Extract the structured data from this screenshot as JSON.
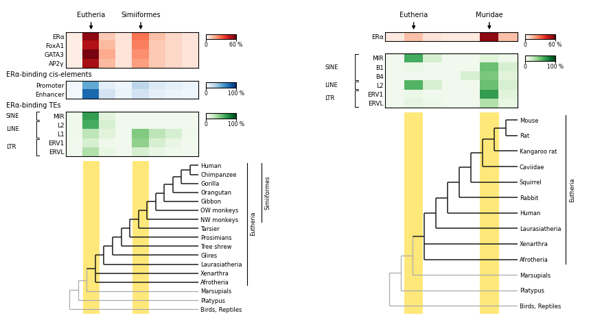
{
  "chart_data": [
    {
      "type": "heatmap",
      "annotations": [
        {
          "text": "Eutheria",
          "column": 1,
          "color": "#FFE87A"
        },
        {
          "text": "Simiiformes",
          "column": 4,
          "color": "#FFE87A"
        }
      ],
      "heatmaps": [
        {
          "categories": [
            "ERα",
            "FoxA1",
            "GATA3",
            "AP2γ"
          ],
          "color": "Reds",
          "colorbar": {
            "range": [
              0,
              60
            ],
            "ticks": [
              0,
              {
                "value": 60,
                "label": "60 %"
              }
            ]
          },
          "cells": [
            [
              3,
              55,
              12,
              6,
              28,
              14,
              9,
              6
            ],
            [
              3,
              50,
              15,
              6,
              26,
              12,
              9,
              6
            ],
            [
              3,
              58,
              18,
              6,
              23,
              12,
              9,
              6
            ],
            [
              3,
              52,
              15,
              6,
              20,
              12,
              9,
              6
            ]
          ]
        },
        {
          "title": "ERα-binding cis-elements",
          "categories": [
            "Promoter",
            "Enhancer"
          ],
          "color": "Blues",
          "colorbar": {
            "range": [
              0,
              100
            ],
            "ticks": [
              0,
              {
                "value": 100,
                "label": "100 %"
              }
            ]
          },
          "cells": [
            [
              3,
              52,
              10,
              4,
              28,
              14,
              9,
              6
            ],
            [
              3,
              78,
              18,
              6,
              18,
              9,
              6,
              4
            ]
          ]
        },
        {
          "title": "ERα-binding TEs",
          "categories": [
            "MIR",
            "L2",
            "L1",
            "ERV1",
            "ERVL"
          ],
          "row_groups": [
            "SINE",
            "LINE",
            "LINE",
            "LTR",
            "LTR"
          ],
          "color": "Greens",
          "colorbar": {
            "range": [
              0,
              100
            ],
            "ticks": [
              0,
              {
                "value": 100,
                "label": "100 %"
              }
            ]
          },
          "cells": [
            [
              6,
              68,
              14,
              4,
              4,
              4,
              4,
              4
            ],
            [
              6,
              62,
              18,
              4,
              4,
              4,
              4,
              4
            ],
            [
              6,
              28,
              14,
              4,
              46,
              28,
              18,
              6
            ],
            [
              4,
              18,
              6,
              4,
              42,
              18,
              9,
              4
            ],
            [
              4,
              32,
              10,
              4,
              18,
              9,
              6,
              4
            ]
          ]
        }
      ],
      "tree": {
        "categories": [
          "Human",
          "Chimpanzee",
          "Gorilla",
          "Orangutan",
          "Gibbon",
          "OW monkeys",
          "NW monkeys",
          "Tarsier",
          "Prosimians",
          "Tree shrew",
          "Glires",
          "Laurasiatheria",
          "Xenarthra",
          "Afrotheria",
          "Marsupials",
          "Platypus",
          "Birds, Reptiles"
        ],
        "structure": [
          [
            [
              [
                [
                  [
                    [
                      [
                        [
                          [
                            [
                              [
                                [
                                  [
                                    [
                                      "Human",
                                      "Chimpanzee"
                                    ],
                                    "Gorilla"
                                  ],
                                  "Orangutan"
                                ],
                                "Gibbon"
                              ],
                              "OW monkeys"
                            ],
                            "NW monkeys"
                          ],
                          "Tarsier"
                        ],
                        "Prosimians"
                      ],
                      "Tree shrew"
                    ],
                    "Glires"
                  ],
                  "Laurasiatheria"
                ],
                "Xenarthra",
                "Afrotheria"
              ],
              "Marsupials"
            ],
            "Platypus"
          ],
          "Birds, Reptiles"
        ],
        "clades": [
          {
            "text": "Eutheria",
            "from": "Human",
            "to": "Afrotheria"
          },
          {
            "text": "Simiiformes",
            "from": "Human",
            "to": "NW monkeys"
          }
        ]
      }
    },
    {
      "type": "heatmap",
      "annotations": [
        {
          "text": "Eutheria",
          "column": 1,
          "color": "#FFE87A"
        },
        {
          "text": "Muridae",
          "column": 5,
          "color": "#FFE87A"
        }
      ],
      "heatmaps": [
        {
          "categories": [
            "ERα"
          ],
          "color": "Reds",
          "colorbar": {
            "range": [
              0,
              60
            ],
            "ticks": [
              0,
              {
                "value": 60,
                "label": "60 %"
              }
            ]
          },
          "cells": [
            [
              4,
              14,
              6,
              4,
              4,
              55,
              14
            ]
          ]
        },
        {
          "categories": [
            "MIR",
            "B1",
            "B4",
            "L2",
            "ERV1",
            "ERVL"
          ],
          "row_groups": [
            "SINE",
            "SINE",
            "SINE",
            "LINE",
            "LTR",
            "LTR"
          ],
          "color": "Greens",
          "colorbar": {
            "range": [
              0,
              100
            ],
            "ticks": [
              0,
              {
                "value": 100,
                "label": "100 %"
              }
            ]
          },
          "cells": [
            [
              4,
              62,
              18,
              4,
              4,
              14,
              6
            ],
            [
              4,
              8,
              4,
              4,
              4,
              52,
              18
            ],
            [
              4,
              4,
              4,
              4,
              18,
              48,
              14
            ],
            [
              4,
              58,
              18,
              4,
              4,
              52,
              18
            ],
            [
              4,
              8,
              4,
              4,
              4,
              68,
              14
            ],
            [
              4,
              12,
              8,
              4,
              4,
              32,
              10
            ]
          ]
        }
      ],
      "tree": {
        "categories": [
          "Mouse",
          "Rat",
          "Kangaroo rat",
          "Caviidae",
          "Squirrel",
          "Rabbit",
          "Human",
          "Laurasiatheria",
          "Xenarthra",
          "Afrotheria",
          "Marsupials",
          "Platypus",
          "Birds, Reptiles"
        ],
        "structure": [
          [
            [
              [
                [
                  [
                    [
                      [
                        [
                          [
                            [
                              "Mouse",
                              "Rat"
                            ],
                            "Kangaroo rat"
                          ],
                          "Caviidae"
                        ],
                        "Squirrel"
                      ],
                      "Rabbit"
                    ],
                    "Human"
                  ],
                  "Laurasiatheria"
                ],
                "Xenarthra",
                "Afrotheria"
              ],
              "Marsupials"
            ],
            "Platypus"
          ],
          "Birds, Reptiles"
        ],
        "clades": [
          {
            "text": "Eutheria",
            "from": "Mouse",
            "to": "Afrotheria"
          }
        ]
      }
    }
  ]
}
